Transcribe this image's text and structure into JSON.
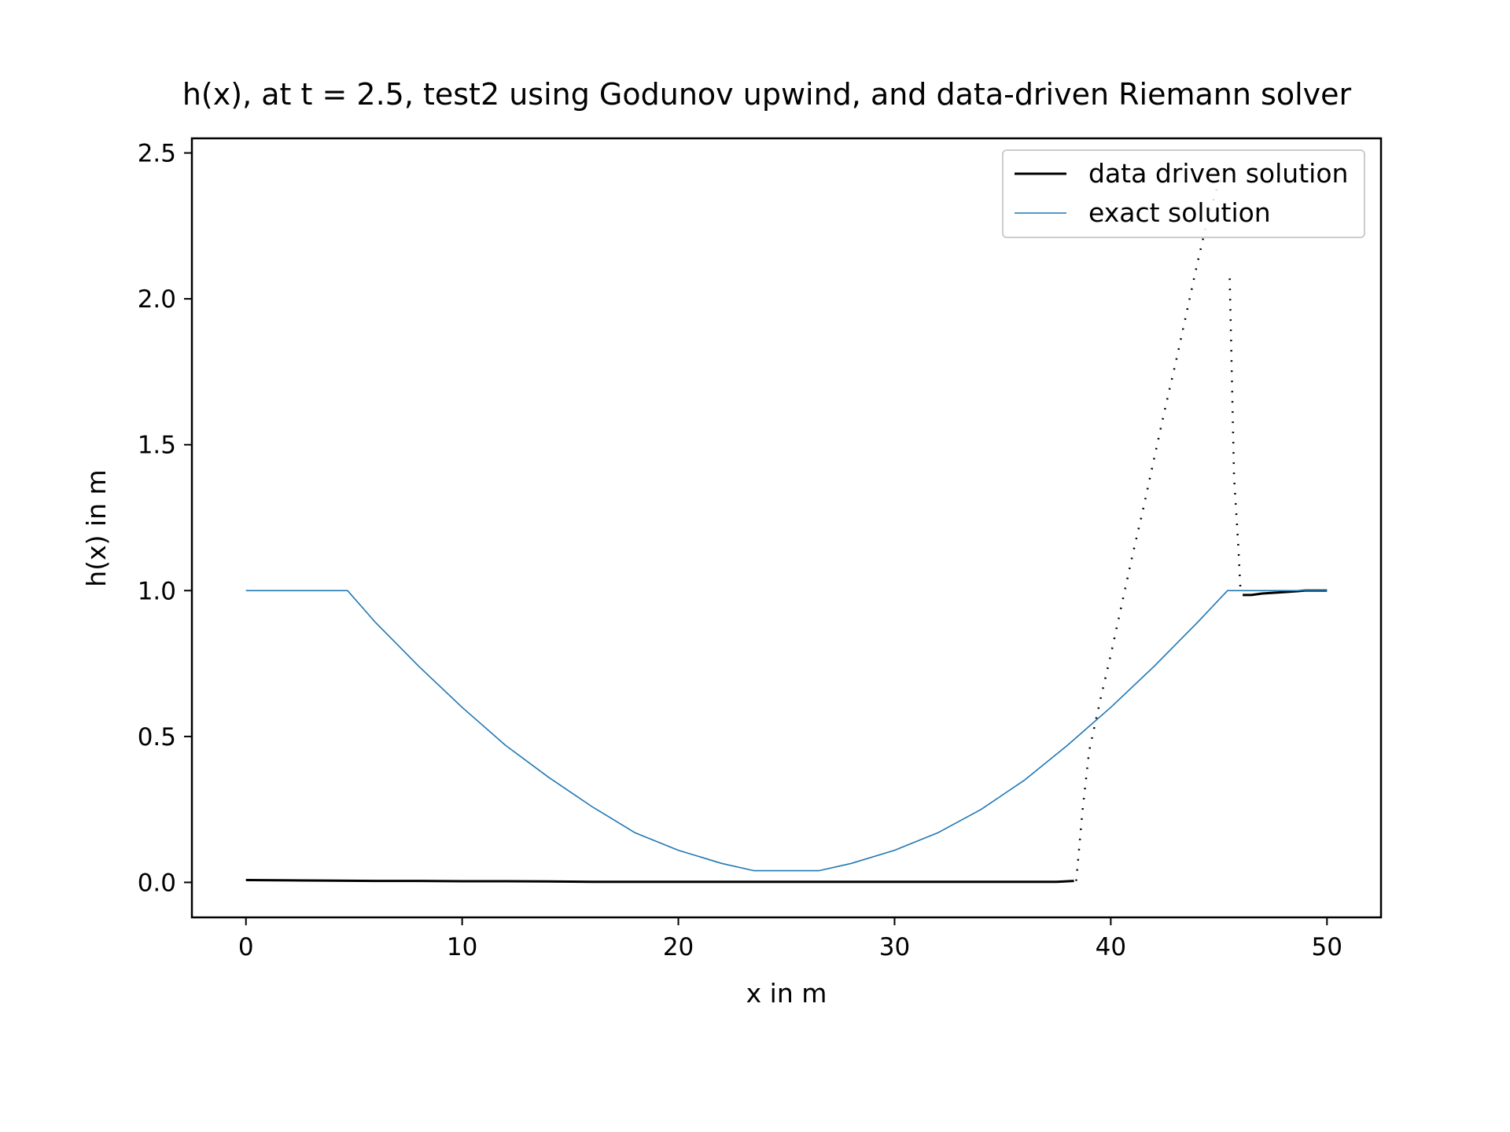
{
  "chart_data": {
    "type": "line",
    "title": "h(x), at t = 2.5, test2 using Godunov upwind, and data-driven Riemann solver",
    "xlabel": "x in m",
    "ylabel": "h(x) in m",
    "xlim": [
      -2.5,
      52.5
    ],
    "ylim": [
      -0.12,
      2.55
    ],
    "xticks": [
      0,
      10,
      20,
      30,
      40,
      50
    ],
    "yticks": [
      0.0,
      0.5,
      1.0,
      1.5,
      2.0,
      2.5
    ],
    "xtick_labels": [
      "0",
      "10",
      "20",
      "30",
      "40",
      "50"
    ],
    "ytick_labels": [
      "0.0",
      "0.5",
      "1.0",
      "1.5",
      "2.0",
      "2.5"
    ],
    "grid": false,
    "legend_position": "top-right",
    "colors": {
      "data_driven": "#000000",
      "exact": "#1f77b4"
    },
    "series": [
      {
        "name": "data driven solution",
        "color": "#000000",
        "style": "solid",
        "x": [
          0,
          2,
          4,
          6,
          8,
          10,
          12,
          14,
          16,
          18,
          20,
          22,
          24,
          26,
          28,
          30,
          32,
          34,
          36,
          37.5,
          38.3
        ],
        "y": [
          0.008,
          0.007,
          0.006,
          0.005,
          0.005,
          0.004,
          0.004,
          0.003,
          0.002,
          0.002,
          0.002,
          0.002,
          0.002,
          0.002,
          0.002,
          0.002,
          0.002,
          0.002,
          0.002,
          0.002,
          0.005
        ]
      },
      {
        "name": "data driven solution",
        "color": "#000000",
        "style": "dotted",
        "x": [
          38.4,
          38.7,
          39.0,
          39.5,
          40.0,
          40.5,
          41.0,
          41.5,
          42.0,
          42.5,
          43.0,
          43.5,
          44.0,
          44.5,
          45.0,
          45.3
        ],
        "y": [
          0.005,
          0.25,
          0.45,
          0.62,
          0.78,
          0.95,
          1.12,
          1.28,
          1.45,
          1.62,
          1.78,
          1.95,
          2.12,
          2.28,
          2.4,
          2.42
        ]
      },
      {
        "name": "data driven solution",
        "color": "#000000",
        "style": "dotted",
        "x": [
          45.5,
          45.6,
          45.7,
          45.9,
          46.0
        ],
        "y": [
          2.07,
          1.74,
          1.39,
          1.15,
          1.0
        ]
      },
      {
        "name": "data driven solution",
        "color": "#000000",
        "style": "solid",
        "x": [
          46.1,
          46.5,
          47,
          48,
          49,
          50
        ],
        "y": [
          0.985,
          0.985,
          0.99,
          0.995,
          1.0,
          1.0
        ]
      },
      {
        "name": "exact solution",
        "color": "#1f77b4",
        "style": "solid",
        "x": [
          0,
          4.7,
          6,
          8,
          10,
          12,
          14,
          16,
          18,
          20,
          22,
          23.5,
          26.5,
          28,
          30,
          32,
          34,
          36,
          38,
          40,
          42,
          44,
          45.4,
          50
        ],
        "y": [
          1.0,
          1.0,
          0.89,
          0.74,
          0.6,
          0.47,
          0.36,
          0.26,
          0.17,
          0.11,
          0.065,
          0.04,
          0.04,
          0.065,
          0.11,
          0.17,
          0.25,
          0.35,
          0.47,
          0.6,
          0.74,
          0.89,
          1.0,
          1.0
        ]
      }
    ]
  }
}
